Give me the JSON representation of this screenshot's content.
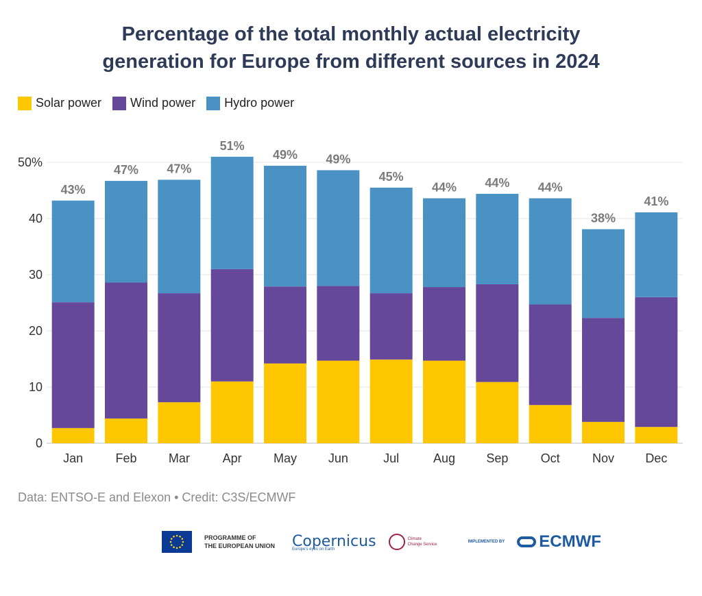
{
  "chart_data": {
    "type": "bar",
    "stacked": true,
    "title_lines": [
      "Percentage of the total monthly actual electricity",
      "generation for Europe from different sources in 2024"
    ],
    "categories": [
      "Jan",
      "Feb",
      "Mar",
      "Apr",
      "May",
      "Jun",
      "Jul",
      "Aug",
      "Sep",
      "Oct",
      "Nov",
      "Dec"
    ],
    "series": [
      {
        "name": "Solar power",
        "color": "#fec701",
        "values": [
          2.7,
          4.4,
          7.3,
          11.0,
          14.2,
          14.7,
          14.9,
          14.7,
          10.9,
          6.8,
          3.8,
          2.9
        ]
      },
      {
        "name": "Wind power",
        "color": "#66489b",
        "values": [
          22.4,
          24.2,
          19.4,
          20.0,
          13.7,
          13.3,
          11.8,
          13.1,
          17.4,
          17.9,
          18.5,
          23.1
        ]
      },
      {
        "name": "Hydro power",
        "color": "#4a91c4",
        "values": [
          18.1,
          18.1,
          20.2,
          20.0,
          21.5,
          20.6,
          18.8,
          15.8,
          16.1,
          18.9,
          15.8,
          15.1
        ]
      }
    ],
    "total_labels": [
      "43%",
      "47%",
      "47%",
      "51%",
      "49%",
      "49%",
      "45%",
      "44%",
      "44%",
      "44%",
      "38%",
      "41%"
    ],
    "y_ticks": [
      "0",
      "10",
      "20",
      "30",
      "40",
      "50%"
    ],
    "ylim": [
      0,
      53
    ],
    "grid": true,
    "legend_position": "top-left"
  },
  "footer": {
    "credit": "Data: ENTSO-E and Elexon • Credit: C3S/ECMWF",
    "eu_text_1": "PROGRAMME OF",
    "eu_text_2": "THE EUROPEAN UNION",
    "copernicus": "opernicus",
    "copernicus_c": "C",
    "copernicus_sub": "Europe's eyes on Earth",
    "c3s_1": "Climate",
    "c3s_2": "Change Service",
    "implemented_by": "IMPLEMENTED BY",
    "ecmwf": "ECMWF"
  }
}
